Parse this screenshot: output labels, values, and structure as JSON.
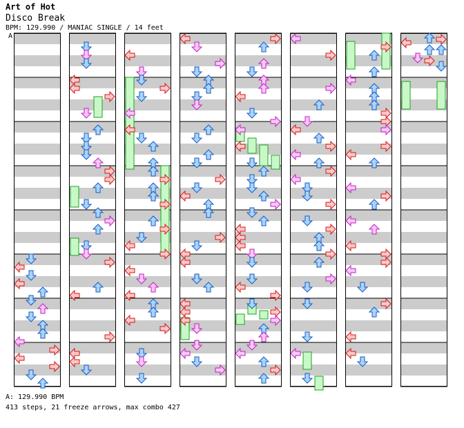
{
  "header": {
    "title": "Art of Hot",
    "subtitle": "Disco Break",
    "info": "BPM: 129.990 / MANIAC SINGLE / 14 feet",
    "marker": "A"
  },
  "footer": {
    "bpm_line": "A: 129.990 BPM",
    "stats": "413 steps, 21 freeze arrows, max combo 427"
  },
  "colors": {
    "left": "#fdc8c8",
    "left_stroke": "#d01818",
    "down": "#a8d4ff",
    "down_stroke": "#1a5ab8",
    "offbeat": "#f8c8f8",
    "offbeat_stroke": "#c020c0",
    "freeze": "#c8f8c8",
    "freeze_stroke": "#20a020",
    "stripe": "#cccccc"
  },
  "icons": [
    "arrow-left-icon",
    "arrow-down-icon",
    "arrow-up-icon",
    "arrow-right-icon",
    "freeze-arrow-icon"
  ]
}
